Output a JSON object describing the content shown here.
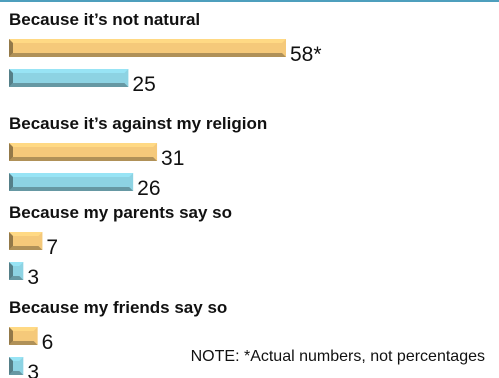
{
  "chart_data": {
    "type": "bar",
    "orientation": "horizontal",
    "categories": [
      "Because it’s not natural",
      "Because it’s against my religion",
      "Because my parents say so",
      "Because my friends say so"
    ],
    "series": [
      {
        "values": [
          58,
          31,
          7,
          6
        ],
        "value_labels": [
          "58*",
          "31",
          "7",
          "6"
        ],
        "color": "#f5c97a"
      },
      {
        "values": [
          25,
          26,
          3,
          3
        ],
        "value_labels": [
          "25",
          "26",
          "3",
          "3"
        ],
        "color": "#8dd3e3"
      }
    ],
    "xlim": [
      0,
      58
    ],
    "grid": false,
    "note": "NOTE: *Actual numbers, not percentages"
  }
}
